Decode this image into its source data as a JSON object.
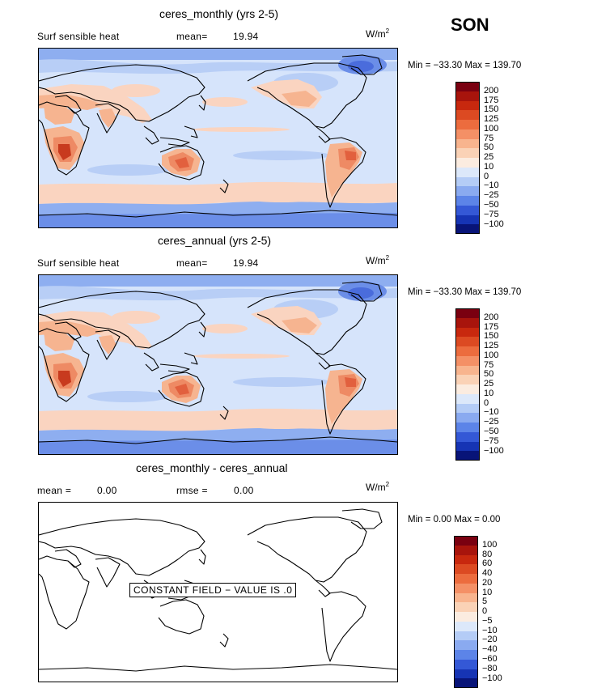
{
  "season": "SON",
  "units": "W/m²",
  "legend_colors": [
    "#e2c2c4",
    "#c8a6aa"
  ],
  "panels": [
    {
      "title": "ceres_monthly (yrs 2-5)",
      "variable": "Surf sensible heat",
      "stat1": "mean=",
      "stat1_value": "19.94",
      "stat2": "",
      "stat2_value": "",
      "minmax": "Min = −33.30 Max = 139.70",
      "colorbar_labels": [
        "200",
        "175",
        "150",
        "125",
        "100",
        "75",
        "50",
        "25",
        "10",
        "0",
        "−10",
        "−25",
        "−50",
        "−75",
        "−100"
      ],
      "colorbar_colors": [
        "#7a0010",
        "#a8140c",
        "#c8280e",
        "#dc4a22",
        "#ec6c3e",
        "#f49066",
        "#f8b48e",
        "#fad2b6",
        "#fbece0",
        "#dce8fa",
        "#b4ccf6",
        "#8aaaf0",
        "#5c84e8",
        "#3458d6",
        "#1634b4",
        "#081478"
      ]
    },
    {
      "title": "ceres_annual (yrs 2-5)",
      "variable": "Surf sensible heat",
      "stat1": "mean=",
      "stat1_value": "19.94",
      "stat2": "",
      "stat2_value": "",
      "minmax": "Min = −33.30 Max = 139.70",
      "colorbar_labels": [
        "200",
        "175",
        "150",
        "125",
        "100",
        "75",
        "50",
        "25",
        "10",
        "0",
        "−10",
        "−25",
        "−50",
        "−75",
        "−100"
      ],
      "colorbar_colors": [
        "#7a0010",
        "#a8140c",
        "#c8280e",
        "#dc4a22",
        "#ec6c3e",
        "#f49066",
        "#f8b48e",
        "#fad2b6",
        "#fbece0",
        "#dce8fa",
        "#b4ccf6",
        "#8aaaf0",
        "#5c84e8",
        "#3458d6",
        "#1634b4",
        "#081478"
      ]
    },
    {
      "title": "ceres_monthly - ceres_annual",
      "variable": "",
      "stat1": "mean =",
      "stat1_value": "0.00",
      "stat2": "rmse =",
      "stat2_value": "0.00",
      "minmax": "Min =   0.00 Max =   0.00",
      "constant_note": "CONSTANT FIELD − VALUE IS .0",
      "colorbar_labels": [
        "100",
        "80",
        "60",
        "40",
        "20",
        "10",
        "5",
        "0",
        "−5",
        "−10",
        "−20",
        "−40",
        "−60",
        "−80",
        "−100"
      ],
      "colorbar_colors": [
        "#7a0010",
        "#a8140c",
        "#c8280e",
        "#dc4a22",
        "#ec6c3e",
        "#f49066",
        "#f8b48e",
        "#fad2b6",
        "#fbece0",
        "#dce8fa",
        "#b4ccf6",
        "#8aaaf0",
        "#5c84e8",
        "#3458d6",
        "#1634b4",
        "#081478"
      ]
    }
  ]
}
